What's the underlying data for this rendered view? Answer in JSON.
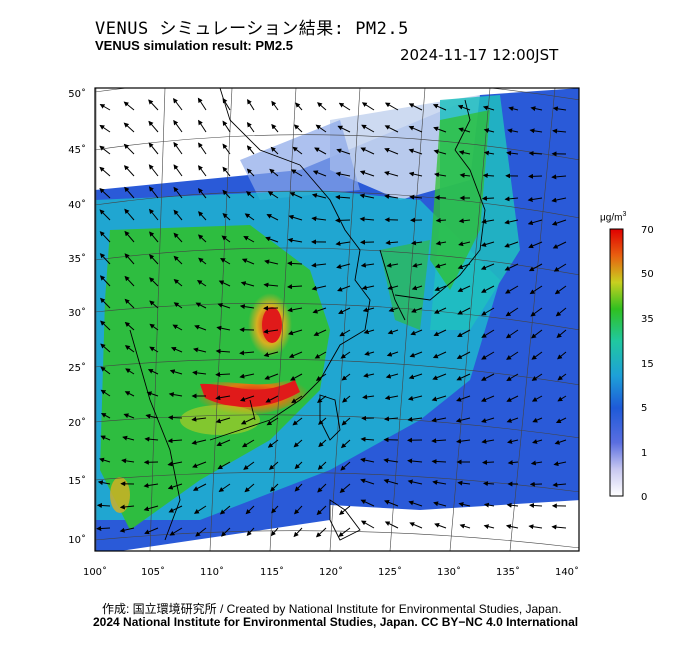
{
  "header": {
    "title_jp": "VENUS シミュレーション結果: PM2.5",
    "title_en": "VENUS simulation result: PM2.5",
    "timestamp": "2024-11-17 12:00JST"
  },
  "map": {
    "lon_labels": [
      "100˚",
      "105˚",
      "110˚",
      "115˚",
      "120˚",
      "125˚",
      "130˚",
      "135˚",
      "140˚"
    ],
    "lat_labels": [
      "50˚",
      "45˚",
      "40˚",
      "35˚",
      "30˚",
      "25˚",
      "20˚",
      "15˚",
      "10˚"
    ],
    "colors": {
      "low": "#2a55d8",
      "mid": "#1fb8c8",
      "green": "#2ec02a",
      "yellow": "#d8d02a",
      "red": "#e01a1a"
    }
  },
  "legend": {
    "unit_prefix": "μg/m",
    "unit_exp": "3",
    "ticks": [
      "70",
      "50",
      "35",
      "15",
      "5",
      "1",
      "0"
    ]
  },
  "footer": {
    "credit": "作成: 国立環境研究所 / Created by National Institute for Environmental Studies, Japan.",
    "copyright": "2024 National Institute for Environmental Studies, Japan. CC BY−NC 4.0 International"
  }
}
